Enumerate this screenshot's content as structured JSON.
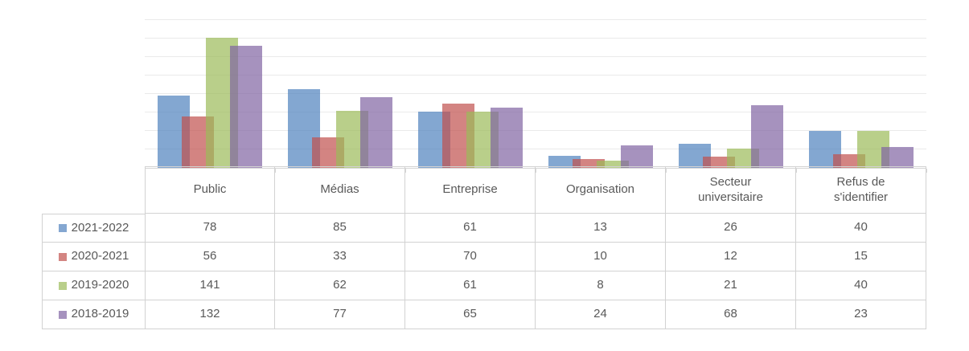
{
  "chart_data": {
    "type": "bar",
    "title": "",
    "xlabel": "",
    "ylabel": "",
    "categories": [
      "Public",
      "Médias",
      "Entreprise",
      "Organisation",
      "Secteur universitaire",
      "Refus de s'identifier"
    ],
    "series": [
      {
        "name": "2021-2022",
        "color": "rgba(79,129,189,0.7)",
        "legend_color": "#84a7d1",
        "values": [
          78,
          85,
          61,
          13,
          26,
          40
        ]
      },
      {
        "name": "2020-2021",
        "color": "rgba(192,80,77,0.7)",
        "legend_color": "#d38582",
        "values": [
          56,
          33,
          70,
          10,
          12,
          15
        ]
      },
      {
        "name": "2019-2020",
        "color": "rgba(155,187,89,0.7)",
        "legend_color": "#b9cf8b",
        "values": [
          141,
          62,
          61,
          8,
          21,
          40
        ]
      },
      {
        "name": "2018-2019",
        "color": "rgba(128,100,162,0.7)",
        "legend_color": "#a692be",
        "values": [
          132,
          77,
          65,
          24,
          68,
          23
        ]
      }
    ],
    "ylim": [
      0,
      160
    ],
    "gridline_step": 20,
    "grid": true,
    "legend_position": "data-table-left-column",
    "colors": {
      "gridline": "#eaeaea",
      "axis": "#d6d6d6",
      "table_border": "#d2d2d2",
      "text": "#595959"
    }
  }
}
